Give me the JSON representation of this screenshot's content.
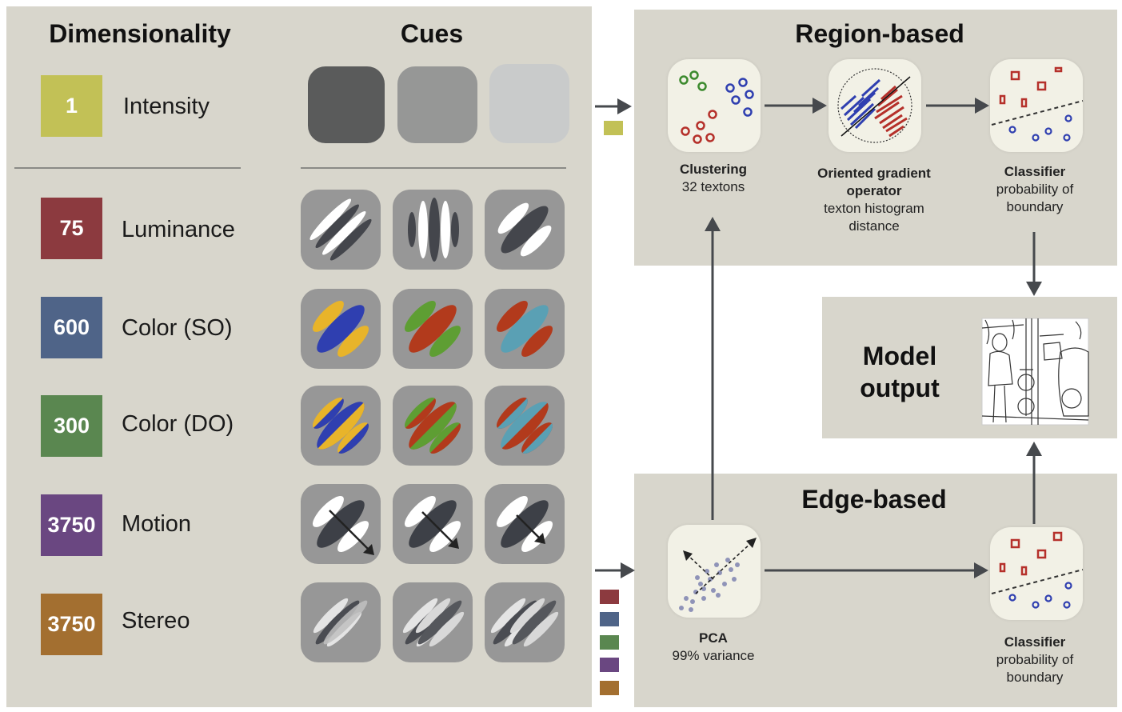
{
  "left": {
    "dimensionality_title": "Dimensionality",
    "cues_title": "Cues",
    "rows": [
      {
        "value": "1",
        "label": "Intensity",
        "color": "#c2c156"
      },
      {
        "value": "75",
        "label": "Luminance",
        "color": "#8c3a3f"
      },
      {
        "value": "600",
        "label": "Color (SO)",
        "color": "#4f6488"
      },
      {
        "value": "300",
        "label": "Color (DO)",
        "color": "#5a8750"
      },
      {
        "value": "3750",
        "label": "Motion",
        "color": "#6a4781"
      },
      {
        "value": "3750",
        "label": "Stereo",
        "color": "#a36f30"
      }
    ]
  },
  "region": {
    "title": "Region-based",
    "clustering": {
      "title": "Clustering",
      "subtitle": "32 textons"
    },
    "ogo": {
      "title": "Oriented gradient operator",
      "subtitle": "texton histogram distance"
    },
    "classifier": {
      "title": "Classifier",
      "subtitle": "probability of boundary"
    }
  },
  "model": {
    "title": "Model output"
  },
  "edge": {
    "title": "Edge-based",
    "pca": {
      "title": "PCA",
      "subtitle": "99% variance"
    },
    "classifier": {
      "title": "Classifier",
      "subtitle": "probability of boundary"
    }
  },
  "colors": {
    "panel": "#d8d6cc",
    "arrow": "#46494d",
    "red": "#b5302a",
    "blue": "#2f3fb0",
    "green": "#3c8a2e"
  }
}
